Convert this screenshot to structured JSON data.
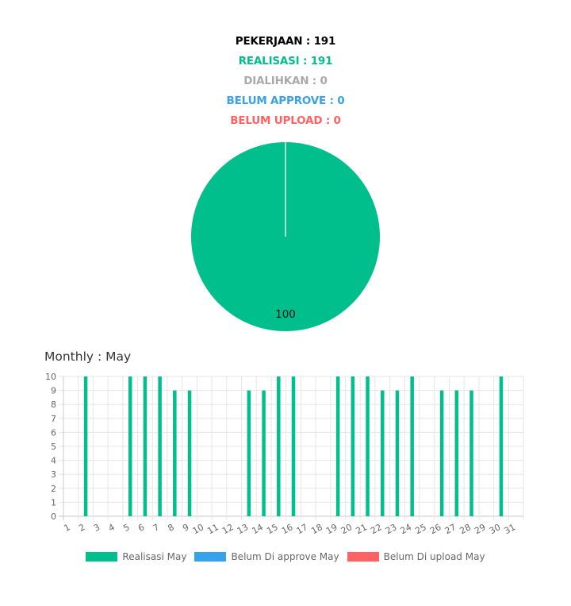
{
  "summary": {
    "pekerjaan": "PEKERJAAN : 191",
    "realisasi": "REALISASI : 191",
    "dialihkan": "DIALIHKAN : 0",
    "belum_approve": "BELUM APPROVE : 0",
    "belum_upload": "BELUM UPLOAD : 0"
  },
  "colors": {
    "pekerjaan": "#000000",
    "realisasi": "#00bf8c",
    "dialihkan": "#a9a9a9",
    "belum_approve": "#36a2eb",
    "belum_upload": "#ff6262",
    "grid": "#e6e6e6",
    "tick": "#666666"
  },
  "monthly": {
    "title": "Monthly : May"
  },
  "chart_data": [
    {
      "type": "pie",
      "slices": [
        {
          "label": "Realisasi",
          "value": 100,
          "color": "#00bf8c"
        },
        {
          "label": "Belum Di approve",
          "value": 0,
          "color": "#36a2eb"
        },
        {
          "label": "Belum Di upload",
          "value": 0,
          "color": "#ff6262"
        }
      ],
      "data_label": "100"
    },
    {
      "type": "bar",
      "title": "Monthly : May",
      "categories": [
        "1",
        "2",
        "3",
        "4",
        "5",
        "6",
        "7",
        "8",
        "9",
        "10",
        "11",
        "12",
        "13",
        "14",
        "15",
        "16",
        "17",
        "18",
        "19",
        "20",
        "21",
        "22",
        "23",
        "24",
        "25",
        "26",
        "27",
        "28",
        "29",
        "30",
        "31"
      ],
      "series": [
        {
          "name": "Realisasi May",
          "color": "#00bf8c",
          "values": [
            0,
            10,
            0,
            0,
            10,
            10,
            10,
            9,
            9,
            0,
            0,
            0,
            9,
            9,
            10,
            10,
            0,
            0,
            10,
            10,
            10,
            9,
            9,
            10,
            0,
            9,
            9,
            9,
            0,
            10,
            0
          ]
        },
        {
          "name": "Belum Di approve May",
          "color": "#36a2eb",
          "values": [
            0,
            0,
            0,
            0,
            0,
            0,
            0,
            0,
            0,
            0,
            0,
            0,
            0,
            0,
            0,
            0,
            0,
            0,
            0,
            0,
            0,
            0,
            0,
            0,
            0,
            0,
            0,
            0,
            0,
            0,
            0
          ]
        },
        {
          "name": "Belum Di upload May",
          "color": "#ff6262",
          "values": [
            0,
            0,
            0,
            0,
            0,
            0,
            0,
            0,
            0,
            0,
            0,
            0,
            0,
            0,
            0,
            0,
            0,
            0,
            0,
            0,
            0,
            0,
            0,
            0,
            0,
            0,
            0,
            0,
            0,
            0,
            0
          ]
        }
      ],
      "yticks": [
        "0",
        "1",
        "2",
        "3",
        "4",
        "5",
        "6",
        "7",
        "8",
        "9",
        "10"
      ],
      "ylim": [
        0,
        10
      ],
      "grid": true,
      "legend": "bottom"
    }
  ]
}
